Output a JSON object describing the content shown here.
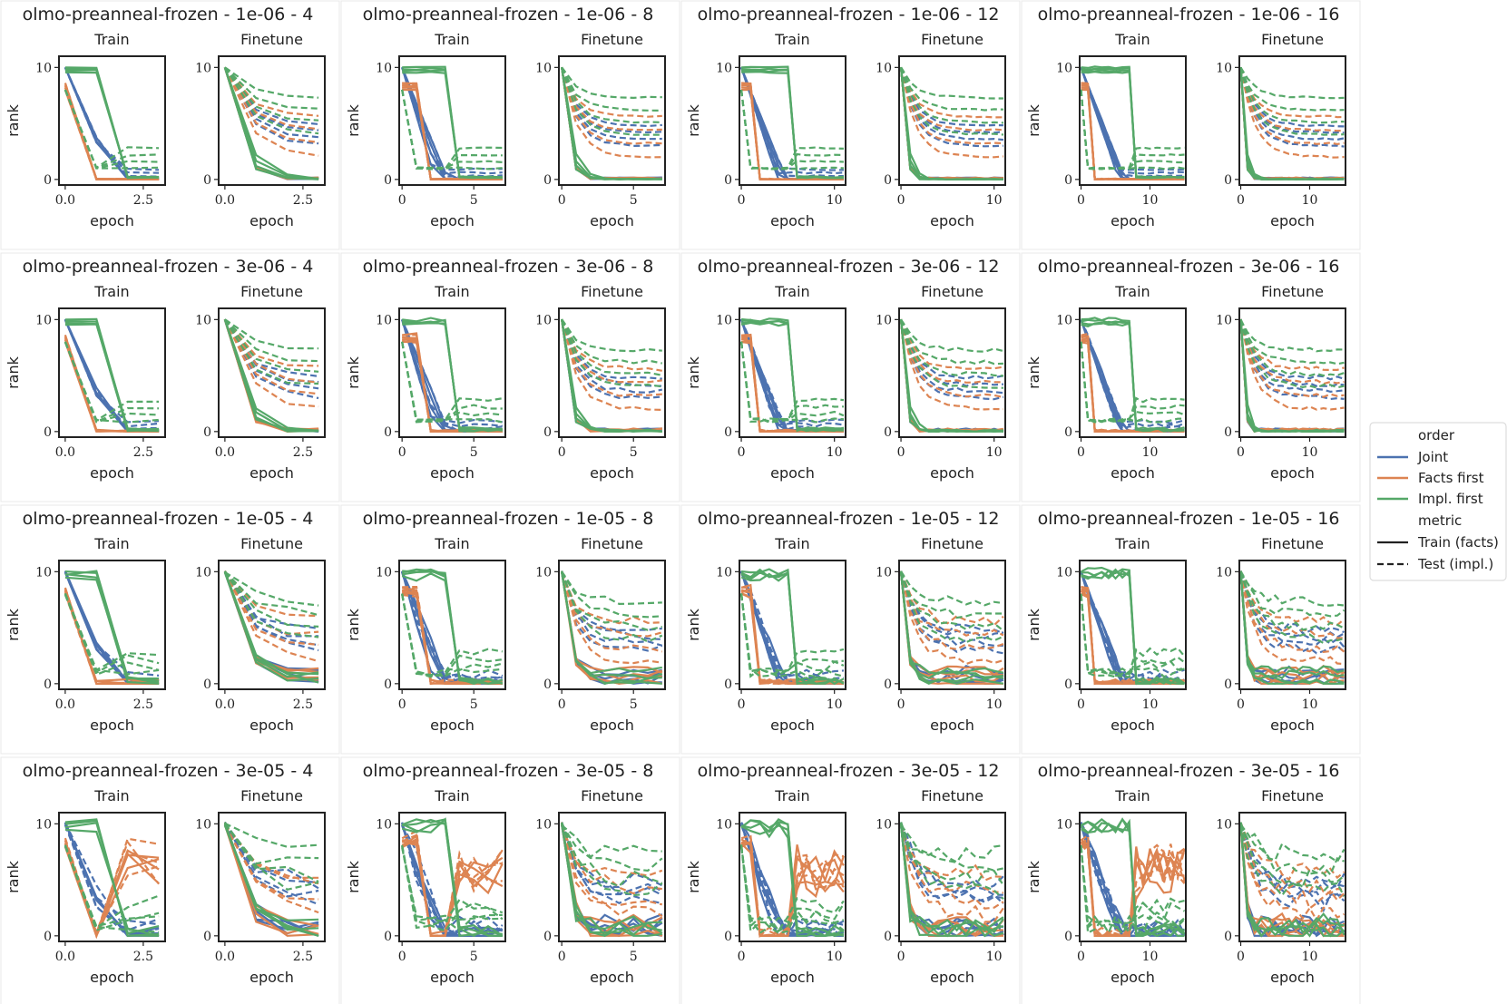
{
  "figure": {
    "series_colors": {
      "Joint": "#4c72b0",
      "Facts first": "#dd8452",
      "Impl. first": "#55a868"
    }
  },
  "legend": {
    "order_title": "order",
    "orders": [
      {
        "label": "Joint",
        "color": "#4c72b0"
      },
      {
        "label": "Facts first",
        "color": "#dd8452"
      },
      {
        "label": "Impl. first",
        "color": "#55a868"
      }
    ],
    "metric_title": "metric",
    "metrics": [
      {
        "label": "Train (facts)",
        "style": "solid"
      },
      {
        "label": "Test (impl.)",
        "style": "dashed"
      }
    ]
  },
  "chart_data": {
    "type": "line",
    "model": "olmo-preanneal-frozen",
    "learning_rates": [
      "1e-06",
      "3e-06",
      "1e-05",
      "3e-05"
    ],
    "epoch_counts": [
      4,
      8,
      12,
      16
    ],
    "subplot_titles": [
      "Train",
      "Finetune"
    ],
    "xlabel": "epoch",
    "ylabel": "rank",
    "ylim": [
      0,
      10.5
    ],
    "yticks": [
      0,
      10
    ],
    "xticks": {
      "4": [
        0.0,
        2.5
      ],
      "8": [
        0,
        5
      ],
      "12": [
        0,
        10
      ],
      "16": [
        0,
        10
      ]
    },
    "xtick_labels": {
      "4": [
        "0.0",
        "2.5"
      ],
      "8": [
        "0",
        "5"
      ],
      "12": [
        "0",
        "10"
      ],
      "16": [
        "0",
        "10"
      ]
    },
    "panels": [
      {
        "title": "olmo-preanneal-frozen - 1e-06 - 4"
      },
      {
        "title": "olmo-preanneal-frozen - 1e-06 - 8"
      },
      {
        "title": "olmo-preanneal-frozen - 1e-06 - 12"
      },
      {
        "title": "olmo-preanneal-frozen - 1e-06 - 16"
      },
      {
        "title": "olmo-preanneal-frozen - 3e-06 - 4"
      },
      {
        "title": "olmo-preanneal-frozen - 3e-06 - 8"
      },
      {
        "title": "olmo-preanneal-frozen - 3e-06 - 12"
      },
      {
        "title": "olmo-preanneal-frozen - 3e-06 - 16"
      },
      {
        "title": "olmo-preanneal-frozen - 1e-05 - 4"
      },
      {
        "title": "olmo-preanneal-frozen - 1e-05 - 8"
      },
      {
        "title": "olmo-preanneal-frozen - 1e-05 - 12"
      },
      {
        "title": "olmo-preanneal-frozen - 1e-05 - 16"
      },
      {
        "title": "olmo-preanneal-frozen - 3e-05 - 4"
      },
      {
        "title": "olmo-preanneal-frozen - 3e-05 - 8"
      },
      {
        "title": "olmo-preanneal-frozen - 3e-05 - 12"
      },
      {
        "title": "olmo-preanneal-frozen - 3e-05 - 16"
      }
    ],
    "series": [
      {
        "order": "Joint",
        "metric": "Train (facts)",
        "values_approx": "starts ~10, drops to 0 by mid-training"
      },
      {
        "order": "Facts first",
        "metric": "Train (facts)",
        "values_approx": "starts ~8.5-10, drops to 0"
      },
      {
        "order": "Impl. first",
        "metric": "Train (facts)",
        "values_approx": "stays ~10 until phase switch, then drops to 0"
      },
      {
        "order": "Joint",
        "metric": "Test (impl.)",
        "values_approx": "finetune: decays from ~10 to ~2-5"
      },
      {
        "order": "Facts first",
        "metric": "Test (impl.)",
        "values_approx": "finetune: decays from ~10 to ~1-6"
      },
      {
        "order": "Impl. first",
        "metric": "Test (impl.)",
        "values_approx": "finetune: decays from ~10 to ~1-8"
      }
    ]
  }
}
